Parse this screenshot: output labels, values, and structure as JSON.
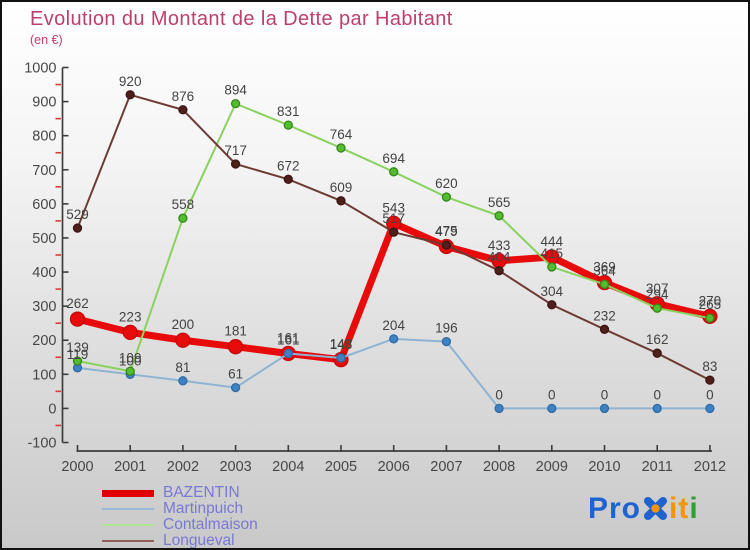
{
  "title": "Evolution du Montant de la Dette par Habitant",
  "subtitle": "(en €)",
  "colors": {
    "title": "#bb4168",
    "legend_text": "#7779d4",
    "axis": "#3d3d3d",
    "minor_tick": "#d43c3c",
    "logo_blue": "#1e63cf",
    "logo_orange": "#f59300",
    "logo_green": "#2ea12e"
  },
  "chart_data": {
    "type": "line",
    "title": "Evolution du Montant de la Dette par Habitant",
    "ylabel": "en €",
    "categories": [
      "2000",
      "2001",
      "2002",
      "2003",
      "2004",
      "2005",
      "2006",
      "2007",
      "2008",
      "2009",
      "2010",
      "2011",
      "2012"
    ],
    "series": [
      {
        "name": "BAZENTIN",
        "line_color": "#e80b0b",
        "point_color": "#e80b0b",
        "point_stroke": "#c50909",
        "legend_color": "#e00000",
        "line_width": 7,
        "point_radius": 7,
        "label_gap": 11,
        "values": [
          262,
          223,
          200,
          181,
          161,
          143,
          543,
          475,
          433,
          444,
          369,
          307,
          270
        ]
      },
      {
        "name": "Martinpuich",
        "line_color": "#8fb3d2",
        "point_color": "#3e82c4",
        "point_stroke": "#2f6ba6",
        "legend_color": "#9ab8d4",
        "line_width": 2,
        "point_radius": 4,
        "label_gap": 9,
        "values": [
          119,
          100,
          81,
          61,
          161,
          148,
          204,
          196,
          0,
          0,
          0,
          0,
          0
        ]
      },
      {
        "name": "Contalmaison",
        "line_color": "#8ad25f",
        "point_color": "#53bd2d",
        "point_stroke": "#35861b",
        "legend_color": "#b2e394",
        "line_width": 2,
        "point_radius": 4,
        "label_gap": 9,
        "values": [
          139,
          109,
          558,
          894,
          831,
          764,
          694,
          620,
          565,
          415,
          364,
          294,
          265
        ]
      },
      {
        "name": "Longueval",
        "line_color": "#6d3b33",
        "point_color": "#4f1f1b",
        "point_stroke": "#3c1512",
        "legend_color": "#8f6059",
        "line_width": 2,
        "point_radius": 4,
        "label_gap": 9,
        "values": [
          529,
          920,
          876,
          717,
          672,
          609,
          517,
          479,
          404,
          304,
          232,
          162,
          83
        ]
      }
    ],
    "ylim": [
      -100,
      1000
    ],
    "ytick_step": 100,
    "grid": false,
    "legend_position": "bottom-left"
  },
  "logo": {
    "pro": "Pro",
    "i1": "i",
    "t": "t",
    "i2": "i"
  }
}
